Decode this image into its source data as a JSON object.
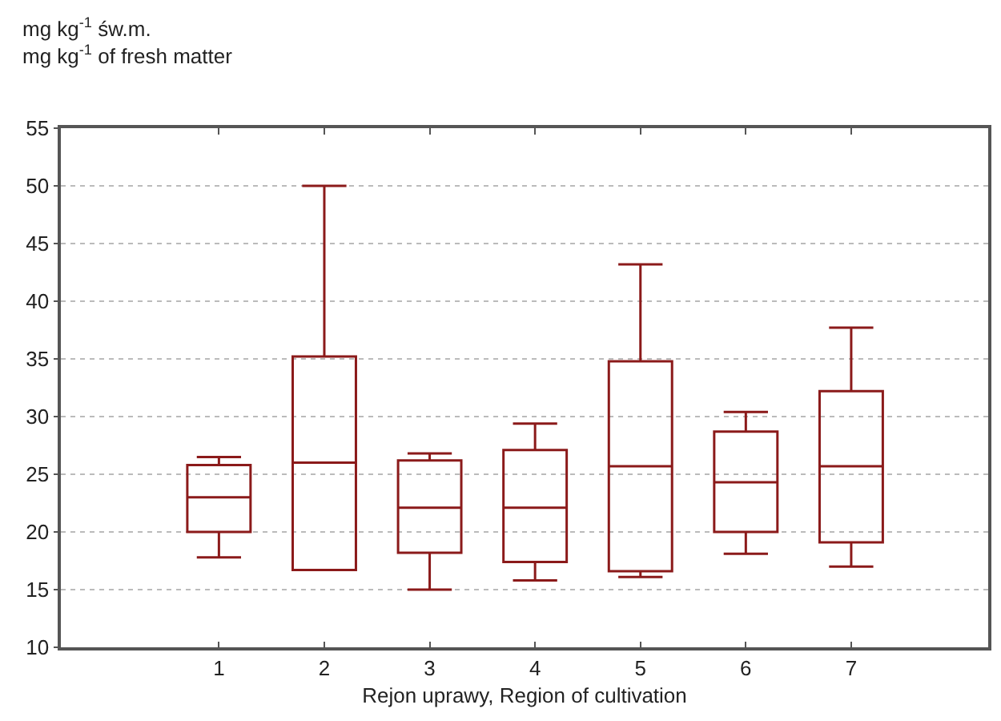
{
  "chart_data": {
    "type": "box",
    "ylabel": "mg kg$^{-1}$ św.m.\nmg kg$^{-1}$ of fresh matter",
    "xlabel": "Rejon uprawy, Region of cultivation",
    "categories": [
      "1",
      "2",
      "3",
      "4",
      "5",
      "6",
      "7"
    ],
    "boxes": [
      {
        "low": 17.8,
        "q1": 20,
        "median": 23,
        "q3": 25.8,
        "high": 26.5
      },
      {
        "low": 16.7,
        "q1": 16.7,
        "median": 26,
        "q3": 35.2,
        "high": 50
      },
      {
        "low": 15,
        "q1": 18.2,
        "median": 22.1,
        "q3": 26.2,
        "high": 26.8
      },
      {
        "low": 15.8,
        "q1": 17.4,
        "median": 22.1,
        "q3": 27.1,
        "high": 29.4
      },
      {
        "low": 16.1,
        "q1": 16.6,
        "median": 25.7,
        "q3": 34.8,
        "high": 43.2
      },
      {
        "low": 18.1,
        "q1": 20,
        "median": 24.3,
        "q3": 28.7,
        "high": 30.4
      },
      {
        "low": 17,
        "q1": 19.1,
        "median": 25.7,
        "q3": 32.2,
        "high": 37.7
      }
    ],
    "color": "#8b1a1a",
    "ylim": [
      10,
      55
    ],
    "yticks": [
      10,
      15,
      20,
      25,
      30,
      35,
      40,
      45,
      50,
      55
    ],
    "grid": "y"
  }
}
